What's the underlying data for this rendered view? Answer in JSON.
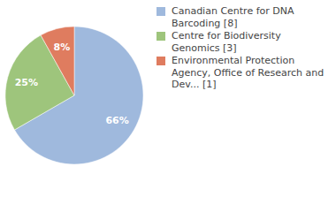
{
  "chart_data": {
    "type": "pie",
    "categories": [
      "Canadian Centre for DNA Barcoding [8]",
      "Centre for Biodiversity Genomics [3]",
      "Environmental Protection Agency, Office of Research and Dev... [1]"
    ],
    "values": [
      66,
      25,
      8
    ],
    "value_labels": [
      "66%",
      "25%",
      "8%"
    ],
    "colors": [
      "#9fb9dd",
      "#9ec57c",
      "#df7c5f"
    ],
    "data_labels": true,
    "legend": "top-right"
  }
}
